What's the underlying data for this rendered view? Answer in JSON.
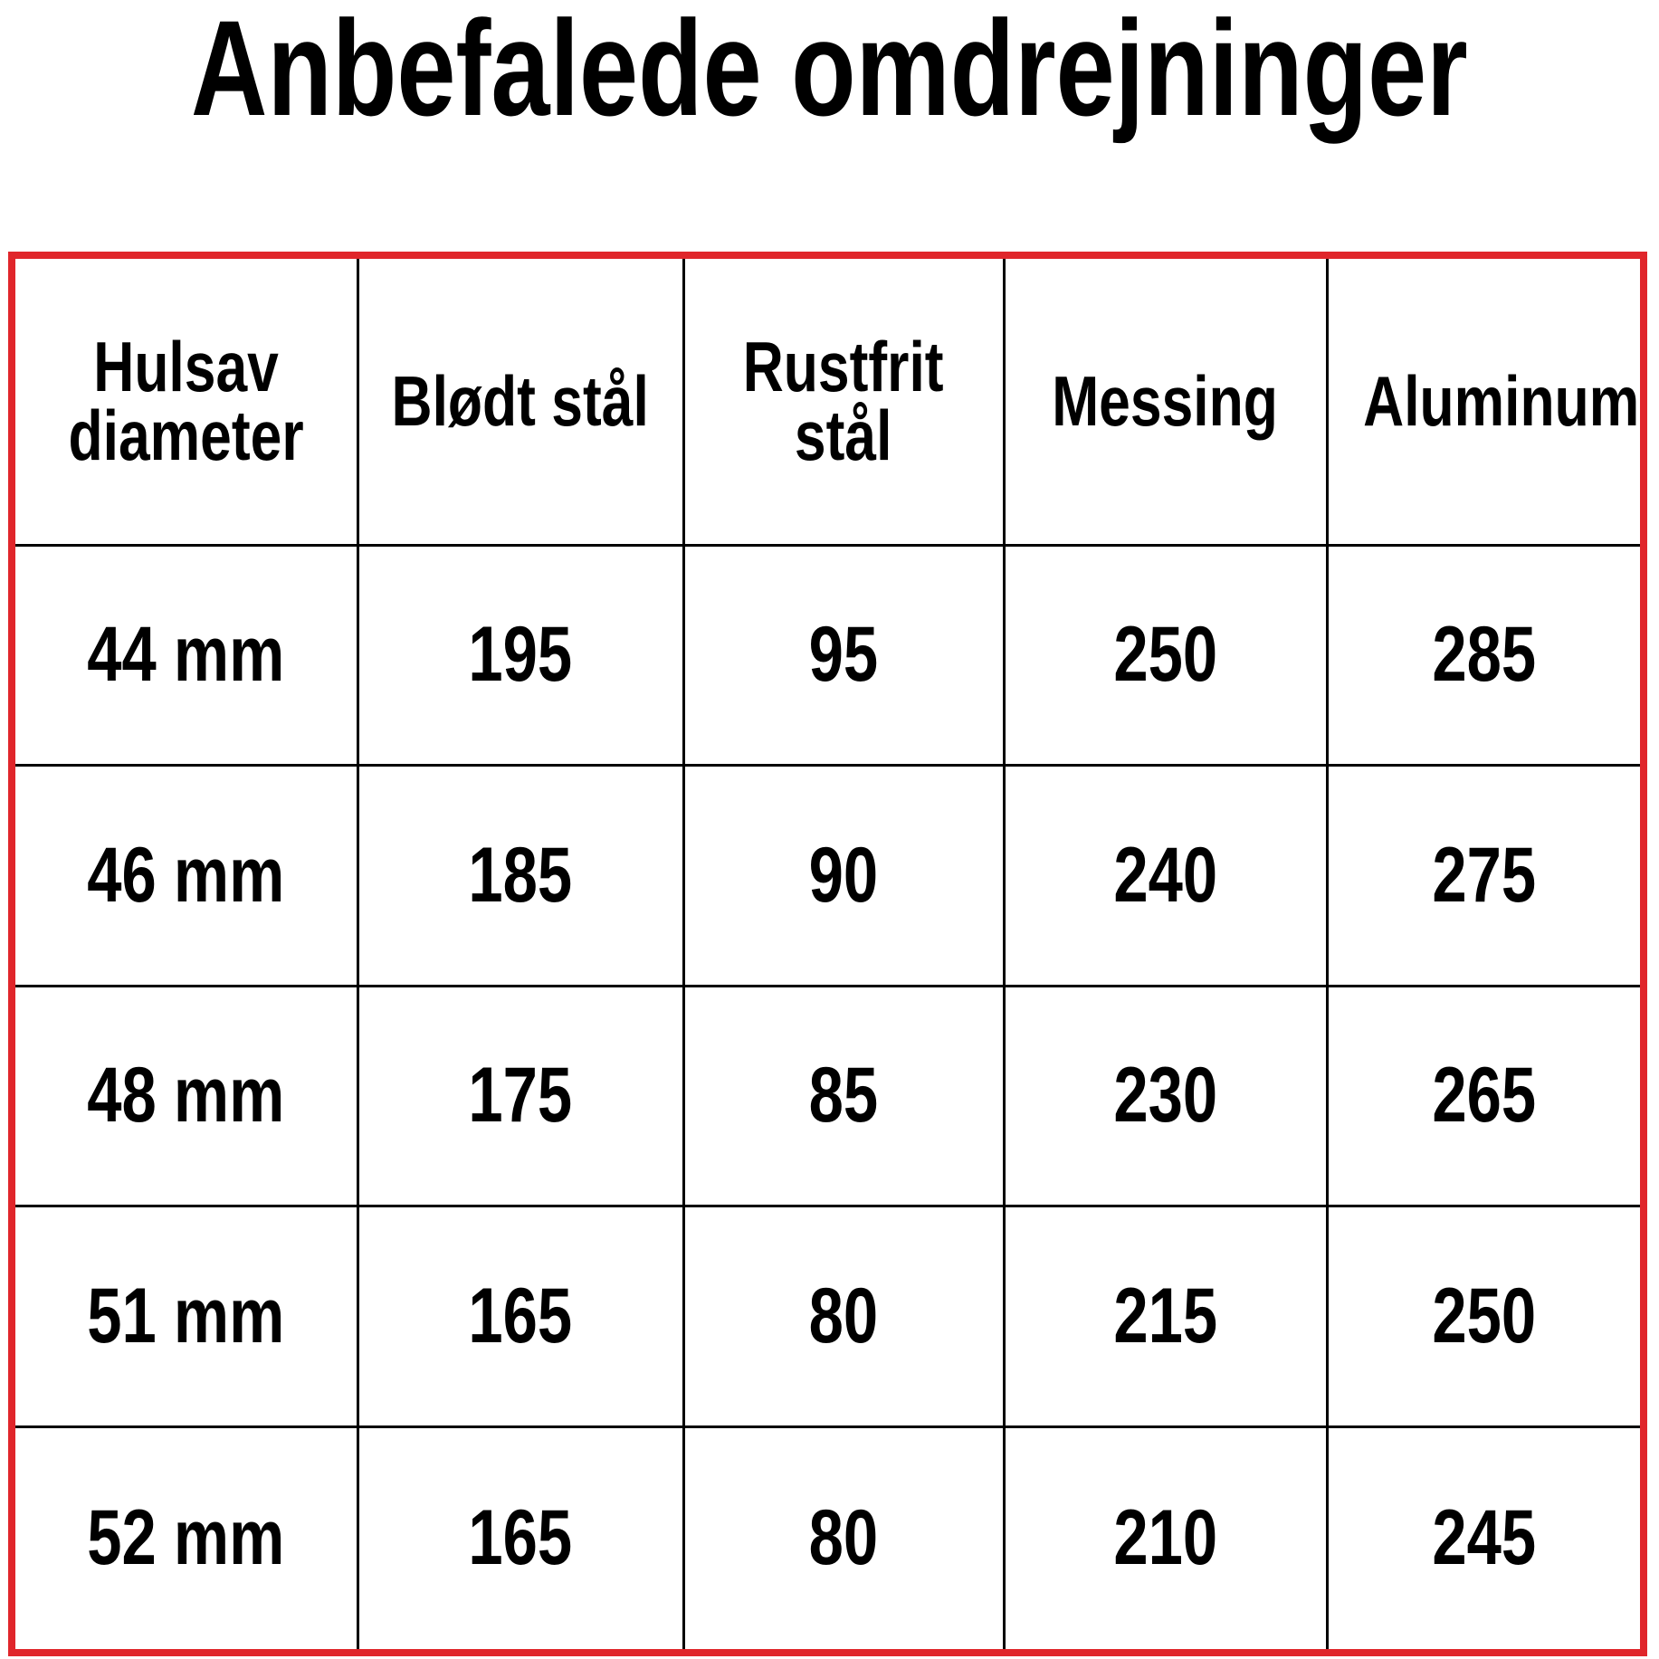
{
  "header": {
    "title": "Anbefalede omdrejninger"
  },
  "table": {
    "columns": [
      "Hulsav\ndiameter",
      "Blødt stål",
      "Rustfrit\nstål",
      "Messing",
      "Aluminum"
    ],
    "rows": [
      [
        "44 mm",
        "195",
        "95",
        "250",
        "285"
      ],
      [
        "46 mm",
        "185",
        "90",
        "240",
        "275"
      ],
      [
        "48 mm",
        "175",
        "85",
        "230",
        "265"
      ],
      [
        "51 mm",
        "165",
        "80",
        "215",
        "250"
      ],
      [
        "52 mm",
        "165",
        "80",
        "210",
        "245"
      ]
    ]
  }
}
